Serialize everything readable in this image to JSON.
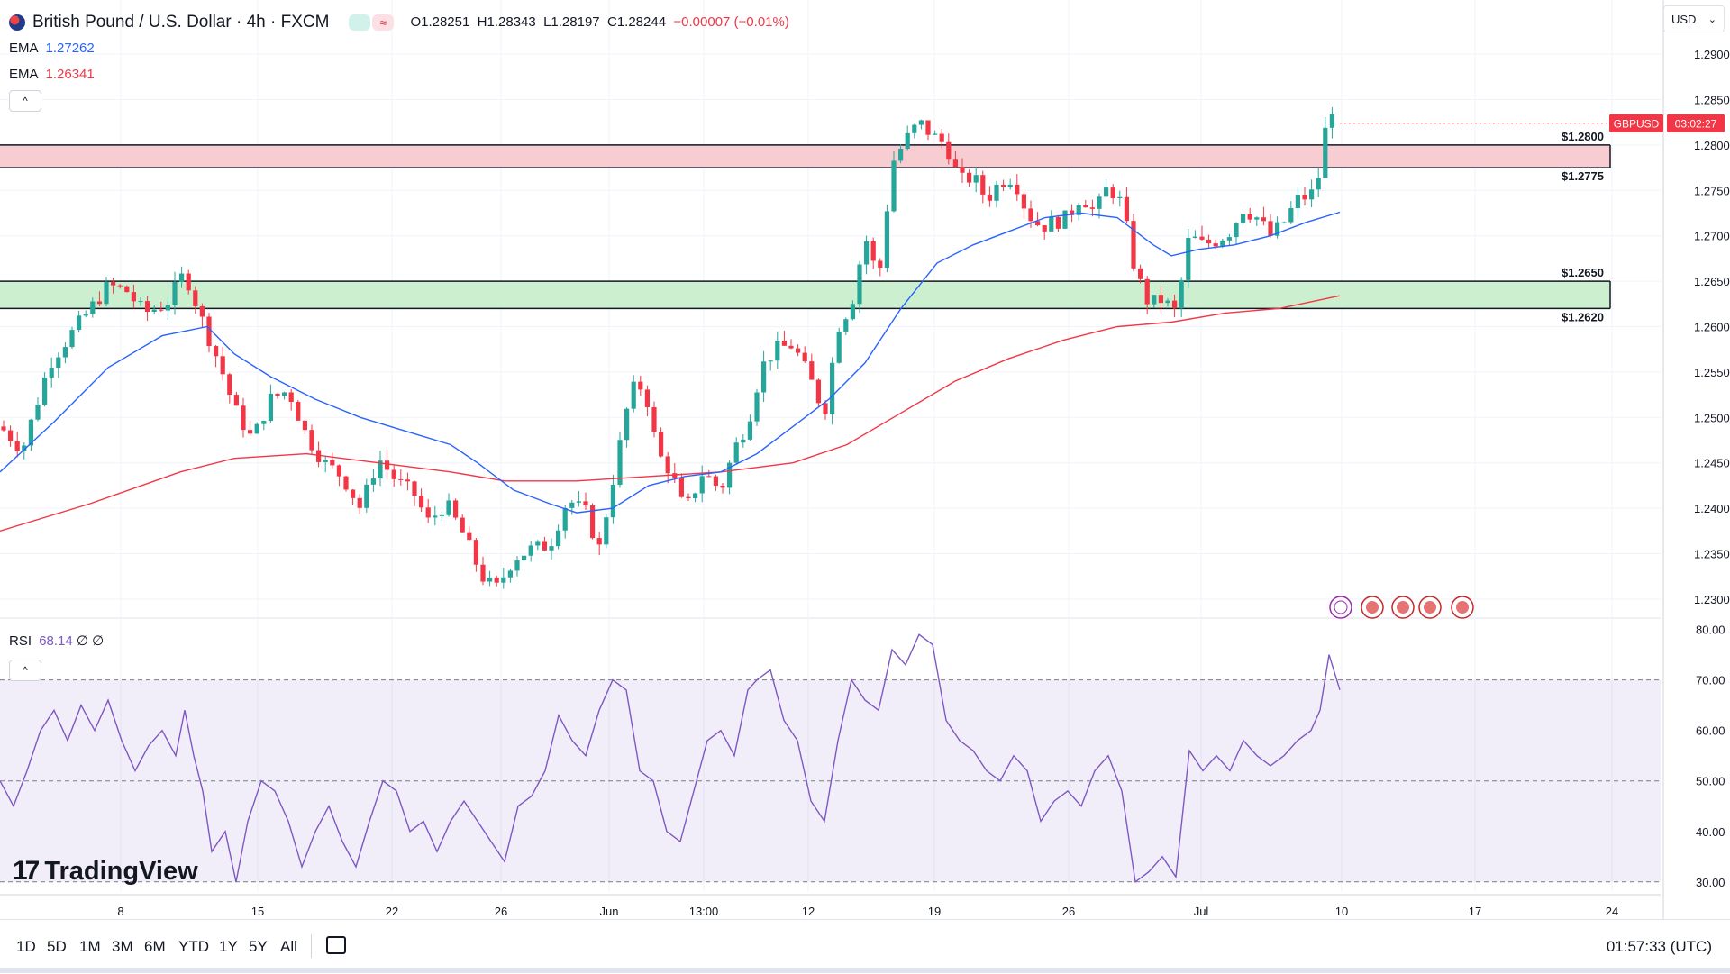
{
  "header": {
    "title": "British Pound / U.S. Dollar · 4h · FXCM",
    "ohlc": {
      "o": "O1.28251",
      "h": "H1.28343",
      "l": "L1.28197",
      "c": "C1.28244",
      "change": "−0.00007 (−0.01%)"
    },
    "ema1_label": "EMA",
    "ema1_value": "1.27262",
    "ema2_label": "EMA",
    "ema2_value": "1.26341",
    "currency": "USD",
    "collapse_glyph": "^"
  },
  "rsi_legend": {
    "label": "RSI",
    "value": "68.14",
    "extra": "∅ ∅"
  },
  "logo": "TradingView",
  "logo_mark": "17",
  "price_tag": {
    "symbol": "GBPUSD",
    "countdown": "03:02:27"
  },
  "level_labels": {
    "res_top": "$1.2800",
    "res_bottom": "$1.2775",
    "sup_top": "$1.2650",
    "sup_bottom": "$1.2620"
  },
  "bottom_bar": {
    "periods": [
      "1D",
      "5D",
      "1M",
      "3M",
      "6M",
      "YTD",
      "1Y",
      "5Y",
      "All"
    ],
    "clock": "01:57:33 (UTC)"
  },
  "colors": {
    "up": "#26a69a",
    "down": "#f23645",
    "ema_fast": "#2962ff",
    "ema_slow": "#f23645",
    "rsi": "#7e57c2",
    "resistance_zone": "#f8cdd2",
    "support_zone": "#ccf0cf"
  },
  "chart_data": {
    "type": "candlestick",
    "price_axis": [
      "1.29000",
      "1.28500",
      "1.28000",
      "1.27500",
      "1.27000",
      "1.26500",
      "1.26000",
      "1.25500",
      "1.25000",
      "1.24500",
      "1.24000",
      "1.23500",
      "1.23000"
    ],
    "time_axis": [
      "8",
      "15",
      "22",
      "26",
      "Jun",
      "13:00",
      "12",
      "19",
      "26",
      "Jul",
      "10",
      "17",
      "24"
    ],
    "ylim": [
      1.2285,
      1.2915
    ],
    "resistance_zone": [
      1.2775,
      1.28
    ],
    "support_zone": [
      1.262,
      1.265
    ],
    "price_path": [
      [
        0,
        1.249
      ],
      [
        25,
        1.2465
      ],
      [
        55,
        1.256
      ],
      [
        85,
        1.26
      ],
      [
        120,
        1.2645
      ],
      [
        140,
        1.264
      ],
      [
        160,
        1.2615
      ],
      [
        185,
        1.2625
      ],
      [
        205,
        1.266
      ],
      [
        225,
        1.2605
      ],
      [
        245,
        1.2555
      ],
      [
        260,
        1.251
      ],
      [
        280,
        1.2475
      ],
      [
        300,
        1.252
      ],
      [
        320,
        1.253
      ],
      [
        340,
        1.248
      ],
      [
        360,
        1.245
      ],
      [
        380,
        1.2435
      ],
      [
        400,
        1.24
      ],
      [
        420,
        1.2455
      ],
      [
        440,
        1.243
      ],
      [
        460,
        1.2415
      ],
      [
        475,
        1.2385
      ],
      [
        495,
        1.2405
      ],
      [
        515,
        1.237
      ],
      [
        535,
        1.2325
      ],
      [
        550,
        1.231
      ],
      [
        570,
        1.2345
      ],
      [
        590,
        1.2355
      ],
      [
        610,
        1.236
      ],
      [
        630,
        1.241
      ],
      [
        650,
        1.2395
      ],
      [
        665,
        1.2355
      ],
      [
        685,
        1.2455
      ],
      [
        700,
        1.253
      ],
      [
        715,
        1.2535
      ],
      [
        730,
        1.246
      ],
      [
        745,
        1.244
      ],
      [
        760,
        1.2395
      ],
      [
        780,
        1.244
      ],
      [
        800,
        1.242
      ],
      [
        815,
        1.2465
      ],
      [
        830,
        1.2495
      ],
      [
        845,
        1.2555
      ],
      [
        860,
        1.2575
      ],
      [
        880,
        1.258
      ],
      [
        900,
        1.254
      ],
      [
        915,
        1.2505
      ],
      [
        930,
        1.26
      ],
      [
        945,
        1.2625
      ],
      [
        960,
        1.27
      ],
      [
        975,
        1.265
      ],
      [
        990,
        1.278
      ],
      [
        1005,
        1.2805
      ],
      [
        1020,
        1.2825
      ],
      [
        1035,
        1.281
      ],
      [
        1050,
        1.28
      ],
      [
        1065,
        1.276
      ],
      [
        1080,
        1.2765
      ],
      [
        1095,
        1.274
      ],
      [
        1110,
        1.276
      ],
      [
        1125,
        1.2765
      ],
      [
        1140,
        1.2725
      ],
      [
        1155,
        1.271
      ],
      [
        1170,
        1.2715
      ],
      [
        1185,
        1.272
      ],
      [
        1200,
        1.2745
      ],
      [
        1215,
        1.2725
      ],
      [
        1230,
        1.2755
      ],
      [
        1245,
        1.2735
      ],
      [
        1260,
        1.266
      ],
      [
        1275,
        1.2625
      ],
      [
        1290,
        1.263
      ],
      [
        1305,
        1.2615
      ],
      [
        1320,
        1.27
      ],
      [
        1335,
        1.269
      ],
      [
        1350,
        1.2695
      ],
      [
        1365,
        1.2705
      ],
      [
        1380,
        1.273
      ],
      [
        1395,
        1.272
      ],
      [
        1410,
        1.27
      ],
      [
        1425,
        1.2715
      ],
      [
        1440,
        1.274
      ],
      [
        1455,
        1.2745
      ],
      [
        1465,
        1.277
      ],
      [
        1475,
        1.2848
      ],
      [
        1487,
        1.2824
      ]
    ],
    "ema_fast_path": [
      [
        0,
        1.244
      ],
      [
        60,
        1.2495
      ],
      [
        120,
        1.2555
      ],
      [
        180,
        1.259
      ],
      [
        230,
        1.26
      ],
      [
        260,
        1.257
      ],
      [
        300,
        1.2545
      ],
      [
        350,
        1.252
      ],
      [
        400,
        1.25
      ],
      [
        450,
        1.2485
      ],
      [
        500,
        1.247
      ],
      [
        530,
        1.245
      ],
      [
        570,
        1.242
      ],
      [
        610,
        1.2405
      ],
      [
        640,
        1.2395
      ],
      [
        680,
        1.24
      ],
      [
        720,
        1.2425
      ],
      [
        760,
        1.2435
      ],
      [
        800,
        1.244
      ],
      [
        840,
        1.246
      ],
      [
        880,
        1.249
      ],
      [
        920,
        1.252
      ],
      [
        960,
        1.256
      ],
      [
        1000,
        1.262
      ],
      [
        1040,
        1.267
      ],
      [
        1080,
        1.269
      ],
      [
        1120,
        1.2705
      ],
      [
        1160,
        1.272
      ],
      [
        1200,
        1.2725
      ],
      [
        1240,
        1.272
      ],
      [
        1280,
        1.269
      ],
      [
        1300,
        1.2678
      ],
      [
        1330,
        1.2685
      ],
      [
        1370,
        1.269
      ],
      [
        1410,
        1.27
      ],
      [
        1450,
        1.2715
      ],
      [
        1487,
        1.2726
      ]
    ],
    "ema_slow_path": [
      [
        0,
        1.2375
      ],
      [
        100,
        1.2405
      ],
      [
        200,
        1.244
      ],
      [
        260,
        1.2455
      ],
      [
        340,
        1.246
      ],
      [
        420,
        1.245
      ],
      [
        500,
        1.244
      ],
      [
        560,
        1.243
      ],
      [
        640,
        1.243
      ],
      [
        720,
        1.2435
      ],
      [
        800,
        1.244
      ],
      [
        880,
        1.245
      ],
      [
        940,
        1.247
      ],
      [
        1000,
        1.2505
      ],
      [
        1060,
        1.254
      ],
      [
        1120,
        1.2565
      ],
      [
        1180,
        1.2585
      ],
      [
        1240,
        1.26
      ],
      [
        1300,
        1.2605
      ],
      [
        1360,
        1.2615
      ],
      [
        1420,
        1.262
      ],
      [
        1487,
        1.2634
      ]
    ],
    "rsi": {
      "ylim": [
        28,
        81
      ],
      "axis": [
        "80.00",
        "70.00",
        "60.00",
        "50.00",
        "40.00",
        "30.00"
      ],
      "bands": [
        30,
        70
      ],
      "path": [
        [
          0,
          50
        ],
        [
          15,
          45
        ],
        [
          30,
          52
        ],
        [
          45,
          60
        ],
        [
          60,
          64
        ],
        [
          75,
          58
        ],
        [
          90,
          65
        ],
        [
          105,
          60
        ],
        [
          120,
          66
        ],
        [
          135,
          58
        ],
        [
          150,
          52
        ],
        [
          165,
          57
        ],
        [
          180,
          60
        ],
        [
          195,
          55
        ],
        [
          205,
          64
        ],
        [
          215,
          55
        ],
        [
          225,
          48
        ],
        [
          235,
          36
        ],
        [
          250,
          40
        ],
        [
          262,
          30
        ],
        [
          275,
          42
        ],
        [
          290,
          50
        ],
        [
          305,
          48
        ],
        [
          320,
          42
        ],
        [
          335,
          33
        ],
        [
          350,
          40
        ],
        [
          365,
          45
        ],
        [
          380,
          38
        ],
        [
          395,
          33
        ],
        [
          410,
          42
        ],
        [
          425,
          50
        ],
        [
          440,
          48
        ],
        [
          455,
          40
        ],
        [
          470,
          42
        ],
        [
          485,
          36
        ],
        [
          500,
          42
        ],
        [
          515,
          46
        ],
        [
          530,
          42
        ],
        [
          545,
          38
        ],
        [
          560,
          34
        ],
        [
          575,
          45
        ],
        [
          590,
          47
        ],
        [
          605,
          52
        ],
        [
          620,
          63
        ],
        [
          635,
          58
        ],
        [
          650,
          55
        ],
        [
          665,
          64
        ],
        [
          680,
          70
        ],
        [
          695,
          68
        ],
        [
          710,
          52
        ],
        [
          725,
          50
        ],
        [
          740,
          40
        ],
        [
          755,
          38
        ],
        [
          770,
          48
        ],
        [
          785,
          58
        ],
        [
          800,
          60
        ],
        [
          815,
          55
        ],
        [
          830,
          68
        ],
        [
          840,
          70
        ],
        [
          855,
          72
        ],
        [
          870,
          62
        ],
        [
          885,
          58
        ],
        [
          900,
          46
        ],
        [
          915,
          42
        ],
        [
          930,
          58
        ],
        [
          945,
          70
        ],
        [
          960,
          66
        ],
        [
          975,
          64
        ],
        [
          990,
          76
        ],
        [
          1005,
          73
        ],
        [
          1020,
          79
        ],
        [
          1035,
          77
        ],
        [
          1050,
          62
        ],
        [
          1065,
          58
        ],
        [
          1080,
          56
        ],
        [
          1095,
          52
        ],
        [
          1110,
          50
        ],
        [
          1125,
          55
        ],
        [
          1140,
          52
        ],
        [
          1155,
          42
        ],
        [
          1170,
          46
        ],
        [
          1185,
          48
        ],
        [
          1200,
          45
        ],
        [
          1215,
          52
        ],
        [
          1230,
          55
        ],
        [
          1245,
          48
        ],
        [
          1260,
          30
        ],
        [
          1275,
          32
        ],
        [
          1290,
          35
        ],
        [
          1305,
          31
        ],
        [
          1320,
          56
        ],
        [
          1335,
          52
        ],
        [
          1350,
          55
        ],
        [
          1365,
          52
        ],
        [
          1380,
          58
        ],
        [
          1395,
          55
        ],
        [
          1410,
          53
        ],
        [
          1425,
          55
        ],
        [
          1440,
          58
        ],
        [
          1455,
          60
        ],
        [
          1465,
          64
        ],
        [
          1475,
          75
        ],
        [
          1487,
          68
        ]
      ]
    }
  }
}
